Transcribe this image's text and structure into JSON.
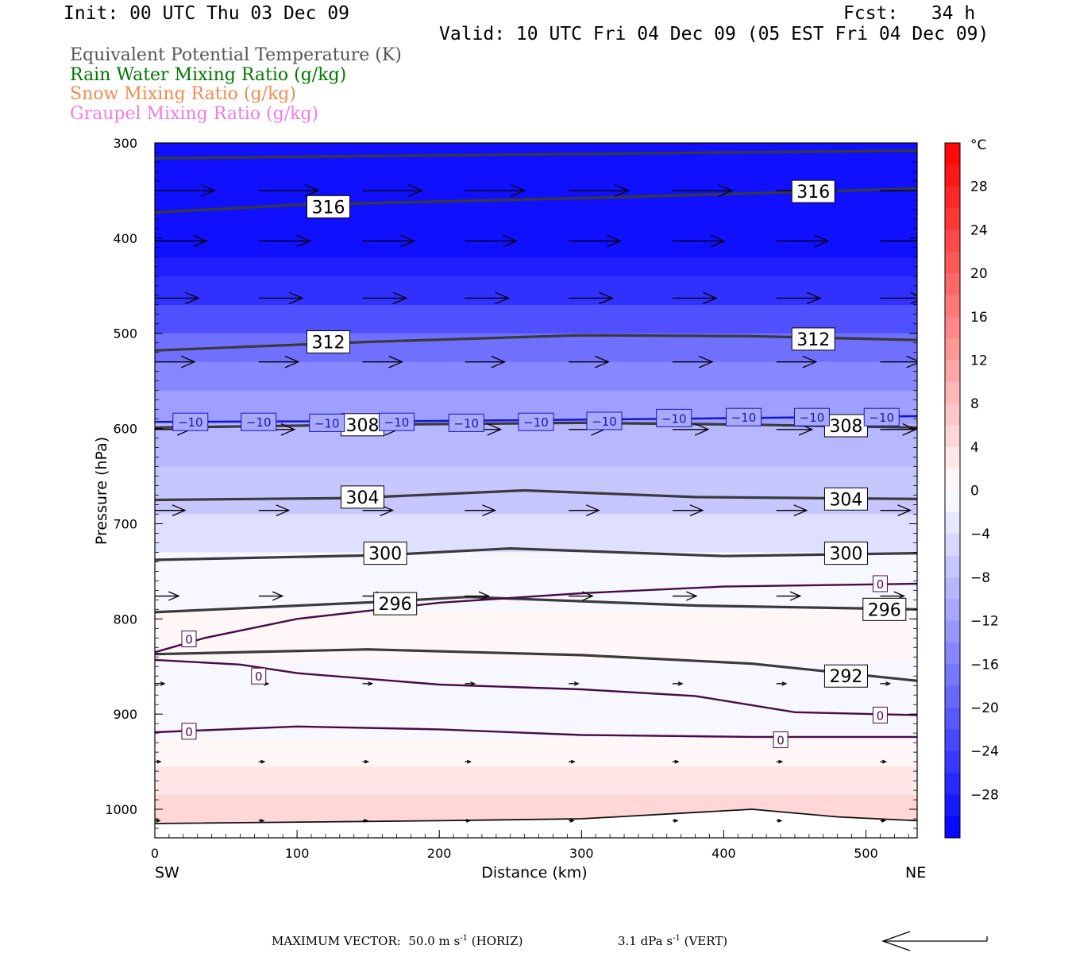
{
  "header": {
    "init": "Init: 00 UTC Thu 03 Dec 09",
    "fcst": "Fcst:   34 h",
    "valid": "Valid: 10 UTC Fri 04 Dec 09 (05 EST Fri 04 Dec 09)"
  },
  "variables": [
    {
      "label": "Equivalent Potential Temperature (K)",
      "color": "#555555"
    },
    {
      "label": "Rain Water Mixing Ratio (g/kg)",
      "color": "#007800"
    },
    {
      "label": "Snow Mixing Ratio (g/kg)",
      "color": "#f08c50"
    },
    {
      "label": "Graupel Mixing Ratio (g/kg)",
      "color": "#f07ce6"
    }
  ],
  "chart_data": {
    "type": "heatmap",
    "description_free": true,
    "xlabel": "Distance (km)",
    "ylabel": "Pressure (hPa)",
    "x_left_label": "SW",
    "x_right_label": "NE",
    "xlim": [
      0,
      536
    ],
    "ylim": [
      1030,
      300
    ],
    "x_ticks": [
      0,
      100,
      200,
      300,
      400,
      500
    ],
    "y_ticks": [
      300,
      400,
      500,
      600,
      700,
      800,
      900,
      1000
    ],
    "colorbar": {
      "unit": "°C",
      "range": [
        -32,
        32
      ],
      "tick_values": [
        28,
        24,
        20,
        16,
        12,
        8,
        4,
        0,
        -4,
        -8,
        -12,
        -16,
        -20,
        -24,
        -28
      ],
      "tick_labels": [
        "28",
        "24",
        "20",
        "16",
        "12",
        "8",
        "4",
        "0",
        "−4",
        "−8",
        "−12",
        "−16",
        "−20",
        "−24",
        "−28"
      ],
      "cold_color": "#0000ff",
      "warm_color": "#ff0000"
    },
    "temperature_bands": [
      {
        "p_top": 300,
        "p_bot": 420,
        "temp": -30
      },
      {
        "p_top": 420,
        "p_bot": 440,
        "temp": -28
      },
      {
        "p_top": 440,
        "p_bot": 470,
        "temp": -26
      },
      {
        "p_top": 470,
        "p_bot": 500,
        "temp": -22
      },
      {
        "p_top": 500,
        "p_bot": 530,
        "temp": -18
      },
      {
        "p_top": 530,
        "p_bot": 560,
        "temp": -15
      },
      {
        "p_top": 560,
        "p_bot": 595,
        "temp": -12
      },
      {
        "p_top": 595,
        "p_bot": 640,
        "temp": -9
      },
      {
        "p_top": 640,
        "p_bot": 690,
        "temp": -7
      },
      {
        "p_top": 690,
        "p_bot": 730,
        "temp": -4
      },
      {
        "p_top": 730,
        "p_bot": 790,
        "temp": -1
      },
      {
        "p_top": 790,
        "p_bot": 845,
        "temp": 1
      },
      {
        "p_top": 845,
        "p_bot": 925,
        "temp": -1
      },
      {
        "p_top": 925,
        "p_bot": 955,
        "temp": 1
      },
      {
        "p_top": 955,
        "p_bot": 985,
        "temp": 3
      },
      {
        "p_top": 985,
        "p_bot": 1030,
        "temp": 5
      }
    ],
    "theta_e_contours": [
      {
        "level": 316,
        "points": [
          [
            0,
            316
          ],
          [
            536,
            308
          ]
        ]
      },
      {
        "level": 316,
        "points": [
          [
            0,
            373
          ],
          [
            100,
            365
          ],
          [
            300,
            358
          ],
          [
            536,
            348
          ]
        ]
      },
      {
        "level": 312,
        "points": [
          [
            0,
            518
          ],
          [
            150,
            509
          ],
          [
            300,
            502
          ],
          [
            420,
            503
          ],
          [
            536,
            507
          ]
        ]
      },
      {
        "level": 308,
        "points": [
          [
            0,
            599
          ],
          [
            150,
            596
          ],
          [
            300,
            594
          ],
          [
            420,
            596
          ],
          [
            536,
            599
          ]
        ]
      },
      {
        "level": 304,
        "points": [
          [
            0,
            675
          ],
          [
            140,
            673
          ],
          [
            260,
            665
          ],
          [
            380,
            672
          ],
          [
            536,
            674
          ]
        ]
      },
      {
        "level": 300,
        "points": [
          [
            0,
            738
          ],
          [
            160,
            733
          ],
          [
            250,
            726
          ],
          [
            400,
            734
          ],
          [
            536,
            731
          ]
        ]
      },
      {
        "level": 296,
        "points": [
          [
            0,
            793
          ],
          [
            160,
            782
          ],
          [
            220,
            777
          ],
          [
            380,
            786
          ],
          [
            536,
            790
          ]
        ]
      },
      {
        "level": 292,
        "points": [
          [
            0,
            837
          ],
          [
            150,
            832
          ],
          [
            300,
            838
          ],
          [
            420,
            847
          ],
          [
            536,
            865
          ]
        ]
      }
    ],
    "theta_e_labels": [
      {
        "text": "316",
        "x": 122,
        "p": 367
      },
      {
        "text": "316",
        "x": 463,
        "p": 351
      },
      {
        "text": "312",
        "x": 122,
        "p": 509
      },
      {
        "text": "312",
        "x": 463,
        "p": 506
      },
      {
        "text": "308",
        "x": 146,
        "p": 596
      },
      {
        "text": "308",
        "x": 486,
        "p": 597
      },
      {
        "text": "304",
        "x": 146,
        "p": 672
      },
      {
        "text": "304",
        "x": 486,
        "p": 674
      },
      {
        "text": "300",
        "x": 162,
        "p": 731
      },
      {
        "text": "300",
        "x": 486,
        "p": 731
      },
      {
        "text": "296",
        "x": 169,
        "p": 784
      },
      {
        "text": "296",
        "x": 513,
        "p": 790
      },
      {
        "text": "292",
        "x": 486,
        "p": 860
      }
    ],
    "isotherm_minus10": {
      "level": -10,
      "points": [
        [
          0,
          593
        ],
        [
          200,
          592
        ],
        [
          350,
          590
        ],
        [
          536,
          587
        ]
      ],
      "labels": [
        [
          25,
          593
        ],
        [
          73,
          593
        ],
        [
          121,
          594
        ],
        [
          170,
          593
        ],
        [
          219,
          594
        ],
        [
          268,
          593
        ],
        [
          316,
          592
        ],
        [
          365,
          589
        ],
        [
          414,
          588
        ],
        [
          462,
          588
        ],
        [
          511,
          588
        ]
      ]
    },
    "isotherm_zero": {
      "level": 0,
      "lines": [
        [
          [
            0,
            835
          ],
          [
            35,
            820
          ],
          [
            100,
            800
          ],
          [
            200,
            783
          ],
          [
            300,
            773
          ],
          [
            400,
            766
          ],
          [
            536,
            763
          ]
        ],
        [
          [
            0,
            843
          ],
          [
            60,
            848
          ],
          [
            100,
            857
          ],
          [
            200,
            869
          ],
          [
            300,
            874
          ],
          [
            380,
            881
          ],
          [
            450,
            898
          ],
          [
            536,
            901
          ]
        ],
        [
          [
            0,
            919
          ],
          [
            100,
            913
          ],
          [
            200,
            916
          ],
          [
            300,
            922
          ],
          [
            420,
            924
          ],
          [
            536,
            924
          ]
        ]
      ],
      "labels": [
        [
          24,
          821
        ],
        [
          73,
          860
        ],
        [
          24,
          918
        ],
        [
          440,
          927
        ],
        [
          510,
          763
        ],
        [
          510,
          901
        ]
      ]
    },
    "vectors": [
      {
        "p": 350,
        "x": [
          0,
          73,
          146,
          218,
          291,
          364,
          437,
          510
        ],
        "len": 75
      },
      {
        "p": 403,
        "x": [
          0,
          73,
          146,
          218,
          291,
          364,
          437,
          510
        ],
        "len": 65
      },
      {
        "p": 463,
        "x": [
          0,
          73,
          146,
          218,
          291,
          364,
          437,
          510
        ],
        "len": 55
      },
      {
        "p": 530,
        "x": [
          0,
          73,
          146,
          218,
          291,
          364,
          437,
          510
        ],
        "len": 50
      },
      {
        "p": 601,
        "x": [
          0,
          73,
          146,
          218,
          291,
          364,
          437,
          510
        ],
        "len": 45
      },
      {
        "p": 686,
        "x": [
          0,
          73,
          146,
          218,
          291,
          364,
          437,
          510
        ],
        "len": 38
      },
      {
        "p": 776,
        "x": [
          0,
          73,
          146,
          218,
          291,
          364,
          437,
          510
        ],
        "len": 30
      },
      {
        "p": 868,
        "x": [
          0,
          73,
          146,
          218,
          291,
          364,
          437,
          510
        ],
        "len": 12
      },
      {
        "p": 950,
        "x": [
          0,
          73,
          146,
          218,
          291,
          364,
          437,
          510
        ],
        "len": 7
      },
      {
        "p": 1012,
        "x": [
          0,
          73,
          146,
          218,
          291,
          364,
          437,
          510
        ],
        "len": 6
      }
    ],
    "surface_line": [
      [
        0,
        1015
      ],
      [
        200,
        1012
      ],
      [
        300,
        1010
      ],
      [
        420,
        1000
      ],
      [
        480,
        1008
      ],
      [
        536,
        1012
      ]
    ]
  },
  "footer": {
    "max_vector_label": "MAXIMUM VECTOR:",
    "max_vector_value": "50.0 m s",
    "max_vector_unit": "(HORIZ)",
    "vert_value": "3.1 dPa s",
    "vert_unit": "(VERT)",
    "superscript": "-1"
  }
}
